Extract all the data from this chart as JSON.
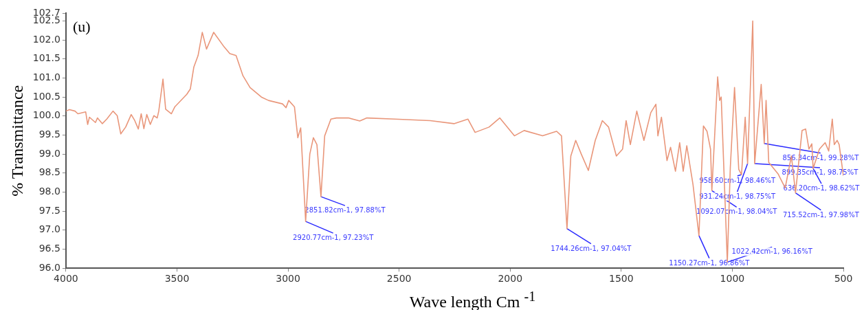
{
  "chart_data": {
    "type": "line",
    "xlabel": "Wave length Cm $^{-1}$",
    "ylabel": "% Transmittance",
    "xlim": [
      4000,
      500
    ],
    "xticks": [
      4000,
      3500,
      3000,
      2500,
      2000,
      1500,
      1000,
      500
    ],
    "ylim": [
      96,
      102.7
    ],
    "yticks": [
      {
        "value": 96,
        "label": "96.0"
      },
      {
        "value": 96.5,
        "label": "96.5"
      },
      {
        "value": 97,
        "label": "97.0"
      },
      {
        "value": 97.5,
        "label": "97.5"
      },
      {
        "value": 98,
        "label": "98.0"
      },
      {
        "value": 98.5,
        "label": "98.5"
      },
      {
        "value": 99,
        "label": "99.0"
      },
      {
        "value": 99.5,
        "label": "99.5"
      },
      {
        "value": 100,
        "label": "100.0"
      },
      {
        "value": 100.5,
        "label": "100.5"
      },
      {
        "value": 101,
        "label": "101.0"
      },
      {
        "value": 101.5,
        "label": "101.5"
      },
      {
        "value": 102,
        "label": "102.0"
      },
      {
        "value": 102.5,
        "label": "102.5"
      },
      {
        "value": 102.7,
        "label": "102.7"
      }
    ],
    "grid": false,
    "legend": false,
    "marker": "none",
    "line_style": "solid",
    "series": [
      {
        "color": "#e9967a",
        "x": [
          4000,
          3984,
          3959,
          3946,
          3911,
          3902,
          3894,
          3867,
          3858,
          3836,
          3816,
          3788,
          3769,
          3753,
          3731,
          3706,
          3690,
          3674,
          3661,
          3649,
          3636,
          3620,
          3604,
          3589,
          3582,
          3563,
          3551,
          3525,
          3510,
          3456,
          3440,
          3424,
          3405,
          3386,
          3367,
          3335,
          3288,
          3262,
          3234,
          3203,
          3171,
          3120,
          3088,
          3025,
          3009,
          2997,
          2971,
          2956,
          2943,
          2920.77,
          2902,
          2886,
          2870,
          2851.82,
          2835,
          2807,
          2782,
          2728,
          2677,
          2645,
          2519,
          2360,
          2253,
          2190,
          2158,
          2095,
          2047,
          1981,
          1937,
          1854,
          1791,
          1769,
          1744.26,
          1727,
          1705,
          1680,
          1648,
          1617,
          1585,
          1557,
          1522,
          1494,
          1478,
          1459,
          1430,
          1398,
          1367,
          1344,
          1335,
          1319,
          1294,
          1278,
          1256,
          1237,
          1221,
          1205,
          1177,
          1150.27,
          1130,
          1114,
          1098,
          1092.07,
          1066,
          1057,
          1050,
          1022.42,
          1009,
          990,
          971,
          958.6,
          942,
          931.24,
          908,
          899.35,
          870,
          856.34,
          848,
          836,
          794,
          762,
          734,
          715.52,
          686,
          670,
          655,
          642,
          636.2,
          608,
          582,
          566,
          550,
          541,
          528,
          519,
          500
        ],
        "values": [
          100.13,
          100.17,
          100.13,
          100.06,
          100.11,
          99.78,
          99.97,
          99.83,
          99.95,
          99.8,
          99.92,
          100.13,
          100.01,
          99.53,
          99.71,
          100.04,
          99.88,
          99.66,
          100.06,
          99.67,
          100.04,
          99.78,
          100.01,
          99.95,
          100.13,
          100.97,
          100.18,
          100.06,
          100.24,
          100.57,
          100.71,
          101.29,
          101.59,
          102.2,
          101.76,
          102.2,
          101.82,
          101.64,
          101.59,
          101.06,
          100.75,
          100.5,
          100.41,
          100.32,
          100.22,
          100.41,
          100.24,
          99.43,
          99.69,
          97.23,
          99.0,
          99.43,
          99.25,
          97.88,
          99.48,
          99.92,
          99.95,
          99.95,
          99.87,
          99.95,
          99.92,
          99.88,
          99.8,
          99.92,
          99.57,
          99.71,
          99.95,
          99.48,
          99.62,
          99.48,
          99.6,
          99.48,
          97.04,
          98.95,
          99.36,
          99.0,
          98.57,
          99.36,
          99.88,
          99.71,
          98.95,
          99.13,
          99.88,
          99.25,
          100.13,
          99.36,
          100.09,
          100.31,
          99.48,
          99.97,
          98.83,
          99.18,
          98.55,
          99.3,
          98.55,
          99.22,
          98.2,
          96.86,
          99.74,
          99.6,
          99.13,
          98.04,
          101.03,
          100.41,
          100.5,
          96.16,
          98.65,
          100.75,
          98.6,
          98.46,
          99.97,
          98.75,
          102.5,
          98.75,
          100.83,
          99.28,
          100.41,
          98.78,
          98.48,
          98.11,
          98.95,
          97.98,
          99.62,
          99.66,
          99.13,
          99.27,
          98.62,
          99.13,
          99.3,
          99.08,
          99.92,
          99.25,
          99.36,
          99.25,
          98.43
        ]
      }
    ],
    "annotations": [
      "(u)",
      {
        "text": "2851.82cm-1, 97.88%T",
        "x": 2851.82,
        "y": 97.88
      },
      {
        "text": "2920.77cm-1, 97.23%T",
        "x": 2920.77,
        "y": 97.23
      },
      {
        "text": "1744.26cm-1, 97.04%T",
        "x": 1744.26,
        "y": 97.04
      },
      {
        "text": "1150.27cm-1, 96.86%T",
        "x": 1150.27,
        "y": 96.86
      },
      {
        "text": "1022.42cm-1, 96.16%T",
        "x": 1022.42,
        "y": 96.16
      },
      {
        "text": "1092.07cm-1, 98.04%T",
        "x": 1092.07,
        "y": 98.04
      },
      {
        "text": "958.60cm-1, 98.46%T",
        "x": 958.6,
        "y": 98.46
      },
      {
        "text": "931.24cm-1, 98.75%T",
        "x": 931.24,
        "y": 98.75
      },
      {
        "text": "899.35cm-1, 98.75%T",
        "x": 899.35,
        "y": 98.75
      },
      {
        "text": "856.34cm-1, 99.28%T",
        "x": 856.34,
        "y": 99.28
      },
      {
        "text": "715.52cm-1, 97.98%T",
        "x": 715.52,
        "y": 97.98
      },
      {
        "text": "636.20cm-1, 98.62%T",
        "x": 636.2,
        "y": 98.62
      }
    ]
  }
}
